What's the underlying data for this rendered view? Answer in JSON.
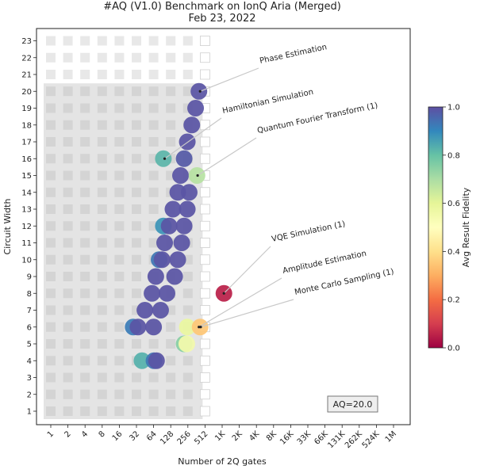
{
  "chart_data": {
    "type": "scatter",
    "title": "#AQ (V1.0) Benchmark on IonQ Aria (Merged)",
    "subtitle": "Feb 23, 2022",
    "xlabel": "Number of 2Q gates",
    "ylabel": "Circuit Width",
    "x_ticks": [
      "1",
      "2",
      "4",
      "8",
      "16",
      "32",
      "64",
      "128",
      "256",
      "512",
      "1K",
      "2K",
      "4K",
      "8K",
      "16K",
      "33K",
      "66K",
      "131K",
      "262K",
      "524K",
      "1M"
    ],
    "y_ticks": [
      "1",
      "2",
      "3",
      "4",
      "5",
      "6",
      "7",
      "8",
      "9",
      "10",
      "11",
      "12",
      "13",
      "14",
      "15",
      "16",
      "17",
      "18",
      "19",
      "20",
      "21",
      "22",
      "23"
    ],
    "x_scale": "log2",
    "aq_value": 20,
    "aq_label": "AQ=20.0",
    "colorbar": {
      "label": "Avg Result Fidelity",
      "ticks": [
        "0.0",
        "0.2",
        "0.4",
        "0.6",
        "0.8",
        "1.0"
      ],
      "range": [
        0,
        1
      ],
      "colors": [
        "#9e0142",
        "#d53e4f",
        "#f46d43",
        "#fdae61",
        "#fee08b",
        "#ffffbf",
        "#e6f598",
        "#abdda4",
        "#66c2a5",
        "#3288bd",
        "#5e4fa2"
      ]
    },
    "annotations": [
      {
        "text": "Phase Estimation",
        "target_x": 420,
        "target_y": 20
      },
      {
        "text": "Hamiltonian Simulation",
        "target_x": 100,
        "target_y": 16
      },
      {
        "text": "Quantum Fourier Transform (1)",
        "target_x": 380,
        "target_y": 15
      },
      {
        "text": "VQE Simulation (1)",
        "target_x": 1100,
        "target_y": 8
      },
      {
        "text": "Amplitude Estimation",
        "target_x": 400,
        "target_y": 6
      },
      {
        "text": "Monte Carlo Sampling (1)",
        "target_x": 430,
        "target_y": 6
      }
    ],
    "points": [
      {
        "x": 400,
        "y": 20,
        "fidelity": 0.99
      },
      {
        "x": 350,
        "y": 19,
        "fidelity": 0.99
      },
      {
        "x": 300,
        "y": 18,
        "fidelity": 0.99
      },
      {
        "x": 250,
        "y": 17,
        "fidelity": 0.99
      },
      {
        "x": 95,
        "y": 16,
        "fidelity": 0.82
      },
      {
        "x": 220,
        "y": 16,
        "fidelity": 0.98
      },
      {
        "x": 190,
        "y": 15,
        "fidelity": 0.99
      },
      {
        "x": 370,
        "y": 15,
        "fidelity": 0.68
      },
      {
        "x": 170,
        "y": 14,
        "fidelity": 0.99
      },
      {
        "x": 270,
        "y": 14,
        "fidelity": 0.99
      },
      {
        "x": 140,
        "y": 13,
        "fidelity": 0.99
      },
      {
        "x": 250,
        "y": 13,
        "fidelity": 0.99
      },
      {
        "x": 95,
        "y": 12,
        "fidelity": 0.88
      },
      {
        "x": 120,
        "y": 12,
        "fidelity": 0.99
      },
      {
        "x": 220,
        "y": 12,
        "fidelity": 0.99
      },
      {
        "x": 100,
        "y": 11,
        "fidelity": 0.99
      },
      {
        "x": 200,
        "y": 11,
        "fidelity": 0.99
      },
      {
        "x": 80,
        "y": 10,
        "fidelity": 0.93
      },
      {
        "x": 90,
        "y": 10,
        "fidelity": 0.99
      },
      {
        "x": 170,
        "y": 10,
        "fidelity": 0.99
      },
      {
        "x": 70,
        "y": 9,
        "fidelity": 0.99
      },
      {
        "x": 150,
        "y": 9,
        "fidelity": 0.99
      },
      {
        "x": 60,
        "y": 8,
        "fidelity": 0.99
      },
      {
        "x": 110,
        "y": 8,
        "fidelity": 0.99
      },
      {
        "x": 1100,
        "y": 8,
        "fidelity": 0.05
      },
      {
        "x": 45,
        "y": 7,
        "fidelity": 0.99
      },
      {
        "x": 85,
        "y": 7,
        "fidelity": 0.99
      },
      {
        "x": 28,
        "y": 6,
        "fidelity": 0.92
      },
      {
        "x": 34,
        "y": 6,
        "fidelity": 0.99
      },
      {
        "x": 64,
        "y": 6,
        "fidelity": 0.99
      },
      {
        "x": 250,
        "y": 6,
        "fidelity": 0.58
      },
      {
        "x": 420,
        "y": 6,
        "fidelity": 0.35
      },
      {
        "x": 220,
        "y": 5,
        "fidelity": 0.75
      },
      {
        "x": 245,
        "y": 5,
        "fidelity": 0.55
      },
      {
        "x": 40,
        "y": 4,
        "fidelity": 0.83
      },
      {
        "x": 65,
        "y": 4,
        "fidelity": 0.93
      },
      {
        "x": 72,
        "y": 4,
        "fidelity": 0.99
      }
    ]
  }
}
